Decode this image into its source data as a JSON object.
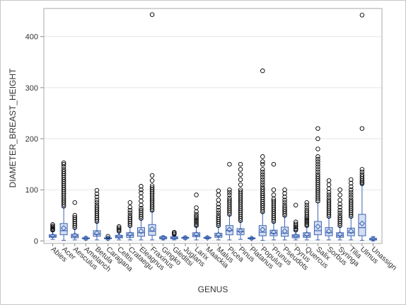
{
  "chart_data": {
    "type": "box",
    "xlabel": "GENUS",
    "ylabel": "DIAMETER_BREAST_HEIGHT",
    "ylim": [
      -5,
      455
    ],
    "yticks": [
      0,
      100,
      200,
      300,
      400
    ],
    "grid": true,
    "box_color": "#3c63b0",
    "box_fill": "#d3def1",
    "outlier_color": "#000000",
    "categories": [
      "Abies",
      "Acer",
      "Aesculus",
      "Amelanch",
      "Betula",
      "Caragana",
      "Celtis",
      "Crataegu",
      "Eleagnus",
      "Fraxinus",
      "Gingko",
      "Gleditsi",
      "Juglans",
      "Larix",
      "Maackia",
      "Malus",
      "Picea",
      "Pinus",
      "Platanus",
      "Populus",
      "Prunus",
      "Pseudots",
      "Pyrus",
      "Quercus",
      "Salix",
      "Sorbus",
      "Syringa",
      "Tilia",
      "Ulmus",
      "Unassign"
    ],
    "series": [
      {
        "q1": 7,
        "median": 9,
        "q3": 12,
        "mean": 10,
        "whisker_low": 3,
        "whisker_high": 19,
        "outliers": [
          21,
          23,
          25,
          27,
          29,
          32
        ]
      },
      {
        "q1": 12,
        "median": 20,
        "q3": 34,
        "mean": 25,
        "whisker_low": 1,
        "whisker_high": 66,
        "outliers": [
          68,
          72,
          76,
          80,
          84,
          88,
          92,
          96,
          100,
          104,
          108,
          112,
          116,
          120,
          124,
          128,
          132,
          136,
          140,
          145,
          150,
          153
        ]
      },
      {
        "q1": 6,
        "median": 9,
        "q3": 13,
        "mean": 11,
        "whisker_low": 2,
        "whisker_high": 24,
        "outliers": [
          26,
          30,
          34,
          38,
          42,
          46,
          50,
          75
        ]
      },
      {
        "q1": 4,
        "median": 5,
        "q3": 6,
        "mean": 5,
        "whisker_low": 2,
        "whisker_high": 8,
        "outliers": []
      },
      {
        "q1": 9,
        "median": 13,
        "q3": 20,
        "mean": 15,
        "whisker_low": 2,
        "whisker_high": 36,
        "outliers": [
          38,
          42,
          46,
          50,
          54,
          58,
          62,
          66,
          70,
          75,
          80,
          86,
          92,
          99
        ]
      },
      {
        "q1": 4,
        "median": 5,
        "q3": 6,
        "mean": 5,
        "whisker_low": 2,
        "whisker_high": 8,
        "outliers": [
          9
        ]
      },
      {
        "q1": 6,
        "median": 8,
        "q3": 11,
        "mean": 9,
        "whisker_low": 2,
        "whisker_high": 17,
        "outliers": [
          19,
          22,
          25,
          28
        ]
      },
      {
        "q1": 7,
        "median": 11,
        "q3": 16,
        "mean": 13,
        "whisker_low": 2,
        "whisker_high": 28,
        "outliers": [
          30,
          34,
          38,
          42,
          46,
          50,
          55,
          60,
          66,
          75
        ]
      },
      {
        "q1": 9,
        "median": 16,
        "q3": 26,
        "mean": 19,
        "whisker_low": 2,
        "whisker_high": 42,
        "outliers": [
          44,
          48,
          52,
          56,
          60,
          64,
          70,
          78,
          86,
          94,
          100,
          107
        ]
      },
      {
        "q1": 11,
        "median": 19,
        "q3": 32,
        "mean": 23,
        "whisker_low": 2,
        "whisker_high": 58,
        "outliers": [
          60,
          64,
          68,
          72,
          76,
          80,
          84,
          88,
          92,
          96,
          100,
          104,
          108,
          118,
          128,
          443
        ]
      },
      {
        "q1": 4,
        "median": 6,
        "q3": 8,
        "mean": 6,
        "whisker_low": 2,
        "whisker_high": 10,
        "outliers": []
      },
      {
        "q1": 4,
        "median": 6,
        "q3": 8,
        "mean": 7,
        "whisker_low": 2,
        "whisker_high": 11,
        "outliers": [
          13,
          15,
          17
        ]
      },
      {
        "q1": 5,
        "median": 6,
        "q3": 7,
        "mean": 6,
        "whisker_low": 3,
        "whisker_high": 9,
        "outliers": []
      },
      {
        "q1": 8,
        "median": 11,
        "q3": 16,
        "mean": 13,
        "whisker_low": 2,
        "whisker_high": 28,
        "outliers": [
          30,
          33,
          36,
          39,
          42,
          45,
          48,
          52,
          57,
          65,
          90
        ]
      },
      {
        "q1": 5,
        "median": 6,
        "q3": 7,
        "mean": 6,
        "whisker_low": 4,
        "whisker_high": 9,
        "outliers": []
      },
      {
        "q1": 7,
        "median": 10,
        "q3": 15,
        "mean": 12,
        "whisker_low": 2,
        "whisker_high": 28,
        "outliers": [
          30,
          34,
          38,
          42,
          46,
          50,
          55,
          60,
          66,
          72,
          80,
          90,
          98
        ]
      },
      {
        "q1": 12,
        "median": 20,
        "q3": 30,
        "mean": 22,
        "whisker_low": 2,
        "whisker_high": 50,
        "outliers": [
          52,
          56,
          60,
          64,
          68,
          72,
          76,
          80,
          84,
          90,
          95,
          100,
          150
        ]
      },
      {
        "q1": 12,
        "median": 18,
        "q3": 24,
        "mean": 19,
        "whisker_low": 3,
        "whisker_high": 38,
        "outliers": [
          40,
          44,
          48,
          52,
          56,
          60,
          64,
          68,
          72,
          76,
          80,
          84,
          88,
          92,
          96,
          100,
          110,
          120,
          130,
          140,
          150
        ]
      },
      {
        "q1": 4,
        "median": 5,
        "q3": 6,
        "mean": 5,
        "whisker_low": 3,
        "whisker_high": 7,
        "outliers": []
      },
      {
        "q1": 10,
        "median": 17,
        "q3": 30,
        "mean": 22,
        "whisker_low": 1,
        "whisker_high": 55,
        "outliers": [
          57,
          61,
          65,
          69,
          73,
          77,
          81,
          85,
          89,
          93,
          97,
          101,
          105,
          110,
          115,
          120,
          125,
          130,
          135,
          140,
          150,
          155,
          165,
          333
        ]
      },
      {
        "q1": 10,
        "median": 15,
        "q3": 21,
        "mean": 17,
        "whisker_low": 2,
        "whisker_high": 36,
        "outliers": [
          38,
          42,
          46,
          50,
          54,
          58,
          62,
          66,
          70,
          74,
          78,
          82,
          90,
          100,
          150
        ]
      },
      {
        "q1": 9,
        "median": 15,
        "q3": 27,
        "mean": 19,
        "whisker_low": 2,
        "whisker_high": 48,
        "outliers": [
          50,
          54,
          58,
          62,
          66,
          70,
          75,
          80,
          86,
          93,
          100
        ]
      },
      {
        "q1": 6,
        "median": 9,
        "q3": 12,
        "mean": 10,
        "whisker_low": 2,
        "whisker_high": 19,
        "outliers": [
          21,
          24,
          27,
          30,
          33,
          37,
          70
        ]
      },
      {
        "q1": 7,
        "median": 10,
        "q3": 16,
        "mean": 13,
        "whisker_low": 2,
        "whisker_high": 28,
        "outliers": [
          30,
          33,
          36,
          39,
          42,
          45,
          48,
          52,
          56,
          60,
          65,
          70,
          75
        ]
      },
      {
        "q1": 12,
        "median": 20,
        "q3": 38,
        "mean": 28,
        "whisker_low": 2,
        "whisker_high": 75,
        "outliers": [
          78,
          82,
          86,
          90,
          94,
          98,
          102,
          106,
          110,
          114,
          118,
          122,
          126,
          130,
          135,
          140,
          145,
          150,
          155,
          160,
          165,
          180,
          200,
          220
        ]
      },
      {
        "q1": 10,
        "median": 16,
        "q3": 26,
        "mean": 19,
        "whisker_low": 2,
        "whisker_high": 46,
        "outliers": [
          48,
          52,
          56,
          60,
          64,
          68,
          72,
          76,
          80,
          85,
          90,
          95,
          102,
          110,
          118
        ]
      },
      {
        "q1": 7,
        "median": 10,
        "q3": 16,
        "mean": 13,
        "whisker_low": 2,
        "whisker_high": 28,
        "outliers": [
          30,
          34,
          38,
          42,
          46,
          50,
          55,
          60,
          66,
          72,
          80,
          90,
          100
        ]
      },
      {
        "q1": 10,
        "median": 16,
        "q3": 25,
        "mean": 19,
        "whisker_low": 2,
        "whisker_high": 46,
        "outliers": [
          48,
          52,
          56,
          60,
          64,
          68,
          72,
          76,
          80,
          85,
          90,
          95,
          100,
          106,
          113,
          120
        ]
      },
      {
        "q1": 10,
        "median": 26,
        "q3": 52,
        "mean": 34,
        "whisker_low": 1,
        "whisker_high": 110,
        "outliers": [
          112,
          115,
          118,
          122,
          126,
          130,
          135,
          140,
          220,
          442
        ]
      },
      {
        "q1": 2,
        "median": 3,
        "q3": 5,
        "mean": 4,
        "whisker_low": 0,
        "whisker_high": 8,
        "outliers": []
      }
    ]
  }
}
